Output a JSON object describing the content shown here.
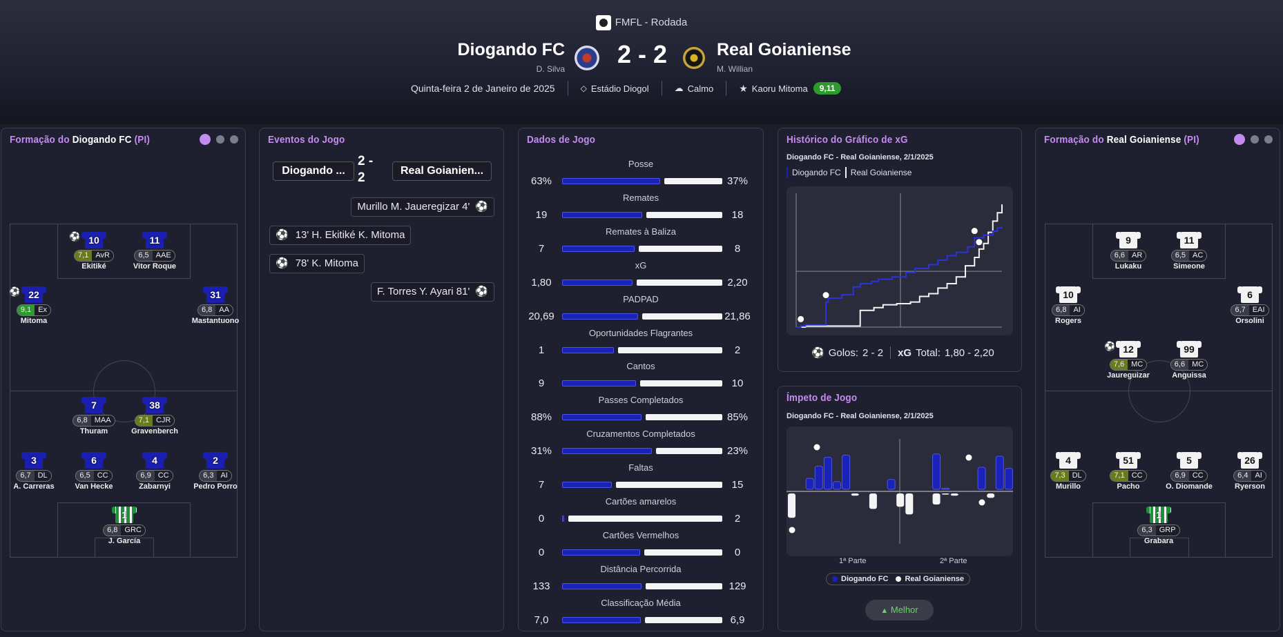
{
  "header": {
    "competition": "FMFL - Rodada",
    "home_team": "Diogando FC",
    "home_manager": "D. Silva",
    "away_team": "Real Goianiense",
    "away_manager": "M. Willian",
    "score": "2 - 2",
    "date": "Quinta-feira 2 de Janeiro de 2025",
    "stadium": "Estádio Diogol",
    "weather": "Calmo",
    "player_of_match": "Kaoru Mitoma",
    "pom_rating": "9,11"
  },
  "home_lineup": {
    "title_pre": "Formação do",
    "title_team": "Diogando FC",
    "title_suffix": "(PI)",
    "players": [
      {
        "num": "10",
        "rating": "7,1",
        "pos": "AvR",
        "name": "Ekitiké"
      },
      {
        "num": "11",
        "rating": "6,5",
        "pos": "AAE",
        "name": "Vitor Roque"
      },
      {
        "num": "22",
        "rating": "9,1",
        "pos": "Ex",
        "name": "Mitoma"
      },
      {
        "num": "31",
        "rating": "6,8",
        "pos": "AA",
        "name": "Mastantuono"
      },
      {
        "num": "7",
        "rating": "6,8",
        "pos": "MAA",
        "name": "Thuram"
      },
      {
        "num": "38",
        "rating": "7,1",
        "pos": "CJR",
        "name": "Gravenberch"
      },
      {
        "num": "3",
        "rating": "6,7",
        "pos": "DL",
        "name": "A. Carreras"
      },
      {
        "num": "6",
        "rating": "6,5",
        "pos": "CC",
        "name": "Van Hecke"
      },
      {
        "num": "4",
        "rating": "6,9",
        "pos": "CC",
        "name": "Zabarnyi"
      },
      {
        "num": "2",
        "rating": "6,3",
        "pos": "AI",
        "name": "Pedro Porro"
      },
      {
        "num": "1",
        "rating": "6,8",
        "pos": "GRC",
        "name": "J. García"
      }
    ]
  },
  "away_lineup": {
    "title_pre": "Formação do",
    "title_team": "Real Goianiense",
    "title_suffix": "(PI)",
    "players": [
      {
        "num": "9",
        "rating": "6,6",
        "pos": "AR",
        "name": "Lukaku"
      },
      {
        "num": "11",
        "rating": "6,5",
        "pos": "AC",
        "name": "Simeone"
      },
      {
        "num": "10",
        "rating": "6,8",
        "pos": "AI",
        "name": "Rogers"
      },
      {
        "num": "6",
        "rating": "6,7",
        "pos": "EAI",
        "name": "Orsolini"
      },
      {
        "num": "12",
        "rating": "7,6",
        "pos": "MC",
        "name": "Jaureguizar"
      },
      {
        "num": "99",
        "rating": "6,6",
        "pos": "MC",
        "name": "Anguissa"
      },
      {
        "num": "4",
        "rating": "7,3",
        "pos": "DL",
        "name": "Murillo"
      },
      {
        "num": "51",
        "rating": "7,1",
        "pos": "CC",
        "name": "Pacho"
      },
      {
        "num": "5",
        "rating": "6,9",
        "pos": "CC",
        "name": "O. Diomande"
      },
      {
        "num": "26",
        "rating": "6,4",
        "pos": "AI",
        "name": "Ryerson"
      },
      {
        "num": "1",
        "rating": "6,3",
        "pos": "GRP",
        "name": "Grabara"
      }
    ]
  },
  "events": {
    "title": "Eventos do Jogo",
    "home_label": "Diogando ...",
    "score_line1": "2 -",
    "score_line2": "2",
    "away_label": "Real Goianien...",
    "items": [
      {
        "side": "away",
        "text": "Murillo  M. Jaueregizar 4'"
      },
      {
        "side": "home",
        "text": "13'  H. Ekitiké  K. Mitoma"
      },
      {
        "side": "home",
        "text": "78'  K. Mitoma"
      },
      {
        "side": "away",
        "text": "F. Torres  Y. Ayari 81'"
      }
    ]
  },
  "stats": {
    "title": "Dados de Jogo",
    "rows": [
      {
        "label": "Posse",
        "home": "63%",
        "away": "37%",
        "hv": 63,
        "av": 37
      },
      {
        "label": "Remates",
        "home": "19",
        "away": "18",
        "hv": 19,
        "av": 18
      },
      {
        "label": "Remates à Baliza",
        "home": "7",
        "away": "8",
        "hv": 7,
        "av": 8
      },
      {
        "label": "xG",
        "home": "1,80",
        "away": "2,20",
        "hv": 1.8,
        "av": 2.2
      },
      {
        "label": "PADPAD",
        "home": "20,69",
        "away": "21,86",
        "hv": 20.69,
        "av": 21.86
      },
      {
        "label": "Oportunidades Flagrantes",
        "home": "1",
        "away": "2",
        "hv": 1,
        "av": 2
      },
      {
        "label": "Cantos",
        "home": "9",
        "away": "10",
        "hv": 9,
        "av": 10
      },
      {
        "label": "Passes Completados",
        "home": "88%",
        "away": "85%",
        "hv": 88,
        "av": 85
      },
      {
        "label": "Cruzamentos Completados",
        "home": "31%",
        "away": "23%",
        "hv": 31,
        "av": 23
      },
      {
        "label": "Faltas",
        "home": "7",
        "away": "15",
        "hv": 7,
        "av": 15
      },
      {
        "label": "Cartões amarelos",
        "home": "0",
        "away": "2",
        "hv": 0,
        "av": 2
      },
      {
        "label": "Cartões Vermelhos",
        "home": "0",
        "away": "0",
        "hv": 0,
        "av": 0
      },
      {
        "label": "Distância Percorrida",
        "home": "133",
        "away": "129",
        "hv": 133,
        "av": 129
      },
      {
        "label": "Classificação Média",
        "home": "7,0",
        "away": "6,9",
        "hv": 7.0,
        "av": 6.9
      }
    ]
  },
  "xg_chart": {
    "title": "Histórico do Gráfico de xG",
    "subtitle": "Diogando FC - Real Goianiense, 2/1/2025",
    "legend_home": "Diogando FC",
    "legend_away": "Real Goianiense",
    "goals_label": "Golos:",
    "goals_value": "2 - 2",
    "xg_label": "xG",
    "xg_total_label": "Total:",
    "xg_total_value": "1,80  -  2,20",
    "home_color": "#1a22b8",
    "away_color": "#f4f4f4"
  },
  "momentum": {
    "title": "Ímpeto de Jogo",
    "subtitle": "Diogando FC - Real Goianiense, 2/1/2025",
    "first_half": "1ª Parte",
    "second_half": "2ª Parte",
    "legend_home": "Diogando FC",
    "legend_away": "Real Goianiense",
    "button": "Melhor"
  },
  "chart_data": [
    {
      "type": "line",
      "title": "Histórico do Gráfico de xG",
      "series": [
        {
          "name": "Diogando FC",
          "x": [
            0,
            2,
            4,
            13,
            14,
            20,
            25,
            28,
            33,
            36,
            42,
            48,
            52,
            58,
            62,
            66,
            70,
            75,
            78,
            82,
            86,
            88,
            90
          ],
          "y": [
            0,
            0.02,
            0.04,
            0.45,
            0.52,
            0.58,
            0.72,
            0.78,
            0.82,
            0.86,
            0.9,
            0.98,
            1.05,
            1.12,
            1.2,
            1.28,
            1.34,
            1.44,
            1.6,
            1.65,
            1.72,
            1.78,
            1.8
          ]
        },
        {
          "name": "Real Goianiense",
          "x": [
            0,
            4,
            12,
            20,
            25,
            28,
            34,
            38,
            44,
            50,
            54,
            58,
            62,
            66,
            70,
            74,
            78,
            80,
            82,
            84,
            86,
            88,
            90
          ],
          "y": [
            0,
            0.02,
            0.02,
            0.02,
            0.02,
            0.3,
            0.35,
            0.4,
            0.42,
            0.45,
            0.55,
            0.6,
            0.7,
            0.78,
            0.9,
            1.1,
            1.25,
            1.4,
            1.5,
            1.7,
            1.9,
            2.05,
            2.2
          ]
        }
      ]
    },
    {
      "type": "bar",
      "title": "Ímpeto de Jogo",
      "series": [
        {
          "name": "Diogando FC",
          "values": [
            0,
            0,
            1,
            2.1,
            2.9,
            0.7,
            3.1,
            0,
            0,
            0,
            0,
            0.9,
            0,
            0,
            0,
            0,
            3.2,
            0.1,
            0,
            0,
            0,
            2,
            0,
            3,
            1.9
          ]
        },
        {
          "name": "Real Goianiense",
          "values": [
            -2.2,
            0,
            0,
            0,
            0,
            0,
            0,
            -0.2,
            0,
            -1.4,
            0,
            0,
            -1.2,
            -1.9,
            0,
            0,
            -1,
            -0.1,
            -0.2,
            0,
            0,
            0,
            -0.4,
            0,
            0
          ]
        }
      ]
    }
  ]
}
